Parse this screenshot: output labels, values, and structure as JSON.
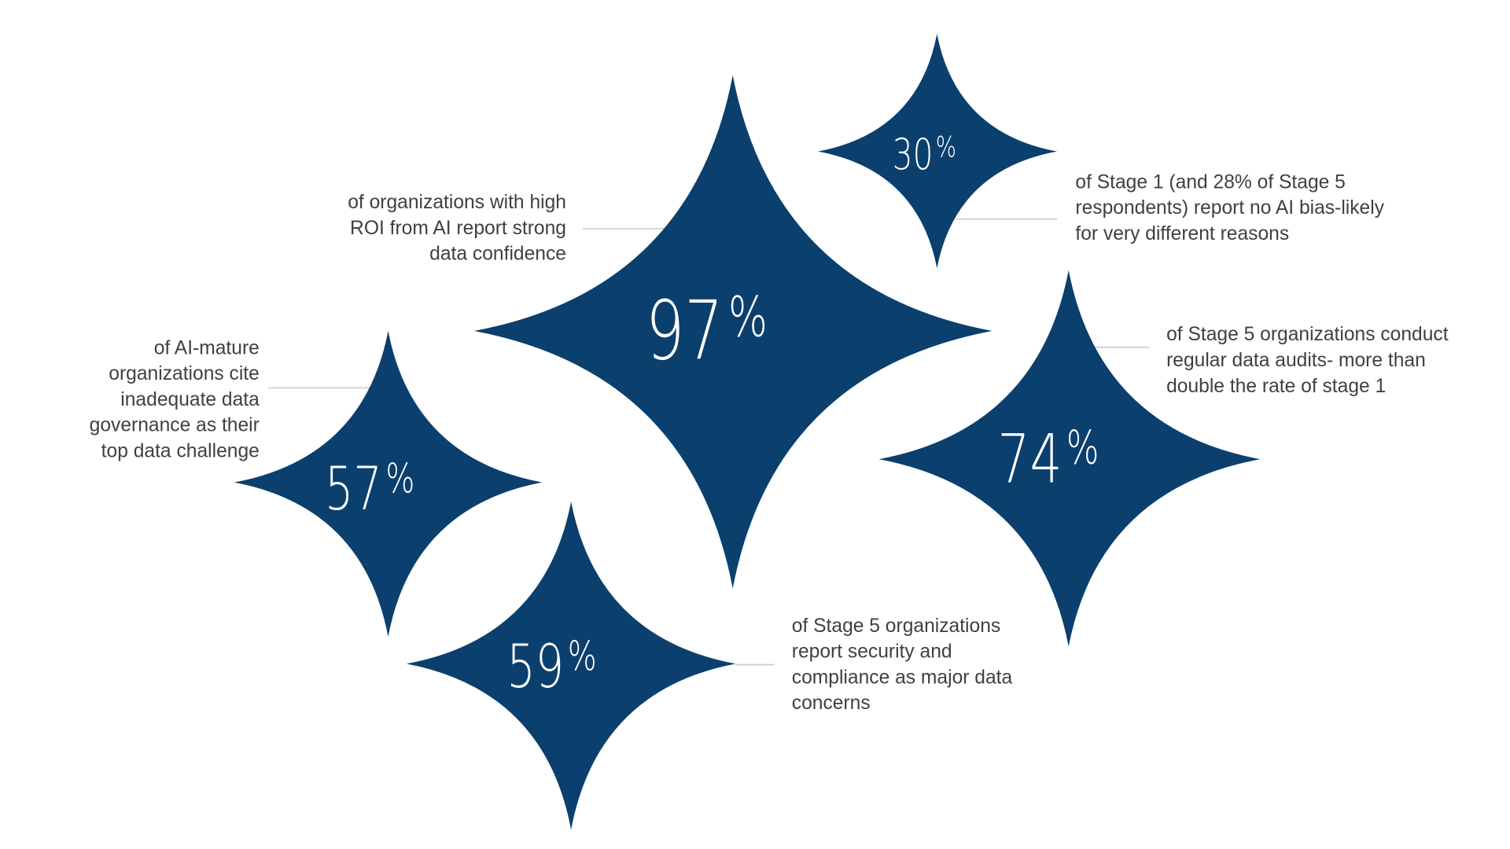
{
  "colors": {
    "star": "#0b3f6e",
    "text": "#404040",
    "leader": "#d0d0d0"
  },
  "stats": [
    {
      "id": "s97",
      "number": "97",
      "unit": "%",
      "lines": [
        "of organizations with high",
        "ROI from AI report strong",
        "data confidence"
      ]
    },
    {
      "id": "s30",
      "number": "30",
      "unit": "%",
      "lines": [
        "of Stage 1 (and 28% of Stage 5",
        "respondents) report no AI bias-likely",
        "for very different reasons"
      ]
    },
    {
      "id": "s74",
      "number": "74",
      "unit": "%",
      "lines": [
        "of Stage 5 organizations conduct",
        "regular data audits- more than",
        "double the rate of stage 1"
      ]
    },
    {
      "id": "s57",
      "number": "57",
      "unit": "%",
      "lines": [
        "of AI-mature",
        "organizations cite",
        "inadequate data",
        "governance as their",
        "top data challenge"
      ]
    },
    {
      "id": "s59",
      "number": "59",
      "unit": "%",
      "lines": [
        "of Stage 5 organizations",
        "report security and",
        "compliance as major data",
        "concerns"
      ]
    }
  ]
}
